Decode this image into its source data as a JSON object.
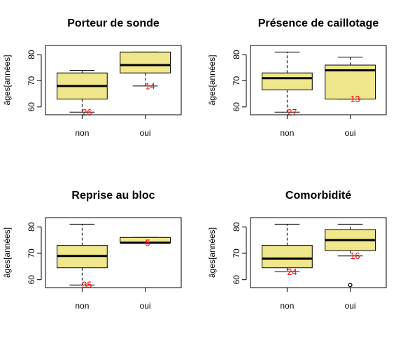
{
  "chart_data": [
    {
      "type": "box",
      "title": "Porteur de sonde",
      "ylabel": "âges[années]",
      "categories": [
        "non",
        "oui"
      ],
      "yticks": [
        "60",
        "70",
        "80"
      ],
      "ylim": [
        57,
        83.5
      ],
      "boxes": [
        {
          "whisker_low": 58,
          "q1": 63,
          "median": 68,
          "q3": 73,
          "whisker_high": 74,
          "outliers": [],
          "count_label": "26",
          "count_y": 58
        },
        {
          "whisker_low": 68,
          "q1": 73,
          "median": 76,
          "q3": 81,
          "whisker_high": 81,
          "outliers": [],
          "count_label": "14",
          "count_y": 68
        }
      ]
    },
    {
      "type": "box",
      "title": "Présence de caillotage",
      "ylabel": "âges[années]",
      "categories": [
        "non",
        "oui"
      ],
      "yticks": [
        "60",
        "70",
        "80"
      ],
      "ylim": [
        57,
        83.5
      ],
      "boxes": [
        {
          "whisker_low": 58,
          "q1": 66.5,
          "median": 71,
          "q3": 73,
          "whisker_high": 81,
          "outliers": [],
          "count_label": "27",
          "count_y": 58
        },
        {
          "whisker_low": 63,
          "q1": 63,
          "median": 74,
          "q3": 76,
          "whisker_high": 79,
          "outliers": [],
          "count_label": "13",
          "count_y": 63
        }
      ]
    },
    {
      "type": "box",
      "title": "Reprise au bloc",
      "ylabel": "âges[années]",
      "categories": [
        "non",
        "oui"
      ],
      "yticks": [
        "60",
        "70",
        "80"
      ],
      "ylim": [
        57,
        83.5
      ],
      "boxes": [
        {
          "whisker_low": 58,
          "q1": 64.5,
          "median": 69,
          "q3": 73,
          "whisker_high": 81,
          "outliers": [],
          "count_label": "35",
          "count_y": 58
        },
        {
          "whisker_low": 74,
          "q1": 74,
          "median": 74,
          "q3": 76,
          "whisker_high": 76,
          "outliers": [],
          "count_label": "5",
          "count_y": 74
        }
      ]
    },
    {
      "type": "box",
      "title": "Comorbidité",
      "ylabel": "âges[années]",
      "categories": [
        "non",
        "oui"
      ],
      "yticks": [
        "60",
        "70",
        "80"
      ],
      "ylim": [
        57,
        83.5
      ],
      "boxes": [
        {
          "whisker_low": 63,
          "q1": 64.5,
          "median": 68,
          "q3": 73,
          "whisker_high": 81,
          "outliers": [],
          "count_label": "24",
          "count_y": 63
        },
        {
          "whisker_low": 69,
          "q1": 71,
          "median": 75,
          "q3": 79,
          "whisker_high": 81,
          "outliers": [
            58
          ],
          "count_label": "16",
          "count_y": 69
        }
      ]
    }
  ],
  "colors": {
    "box_fill": "#f0e68c",
    "box_stroke": "#000000",
    "count_text": "#ff0000",
    "background": "#ffffff"
  }
}
